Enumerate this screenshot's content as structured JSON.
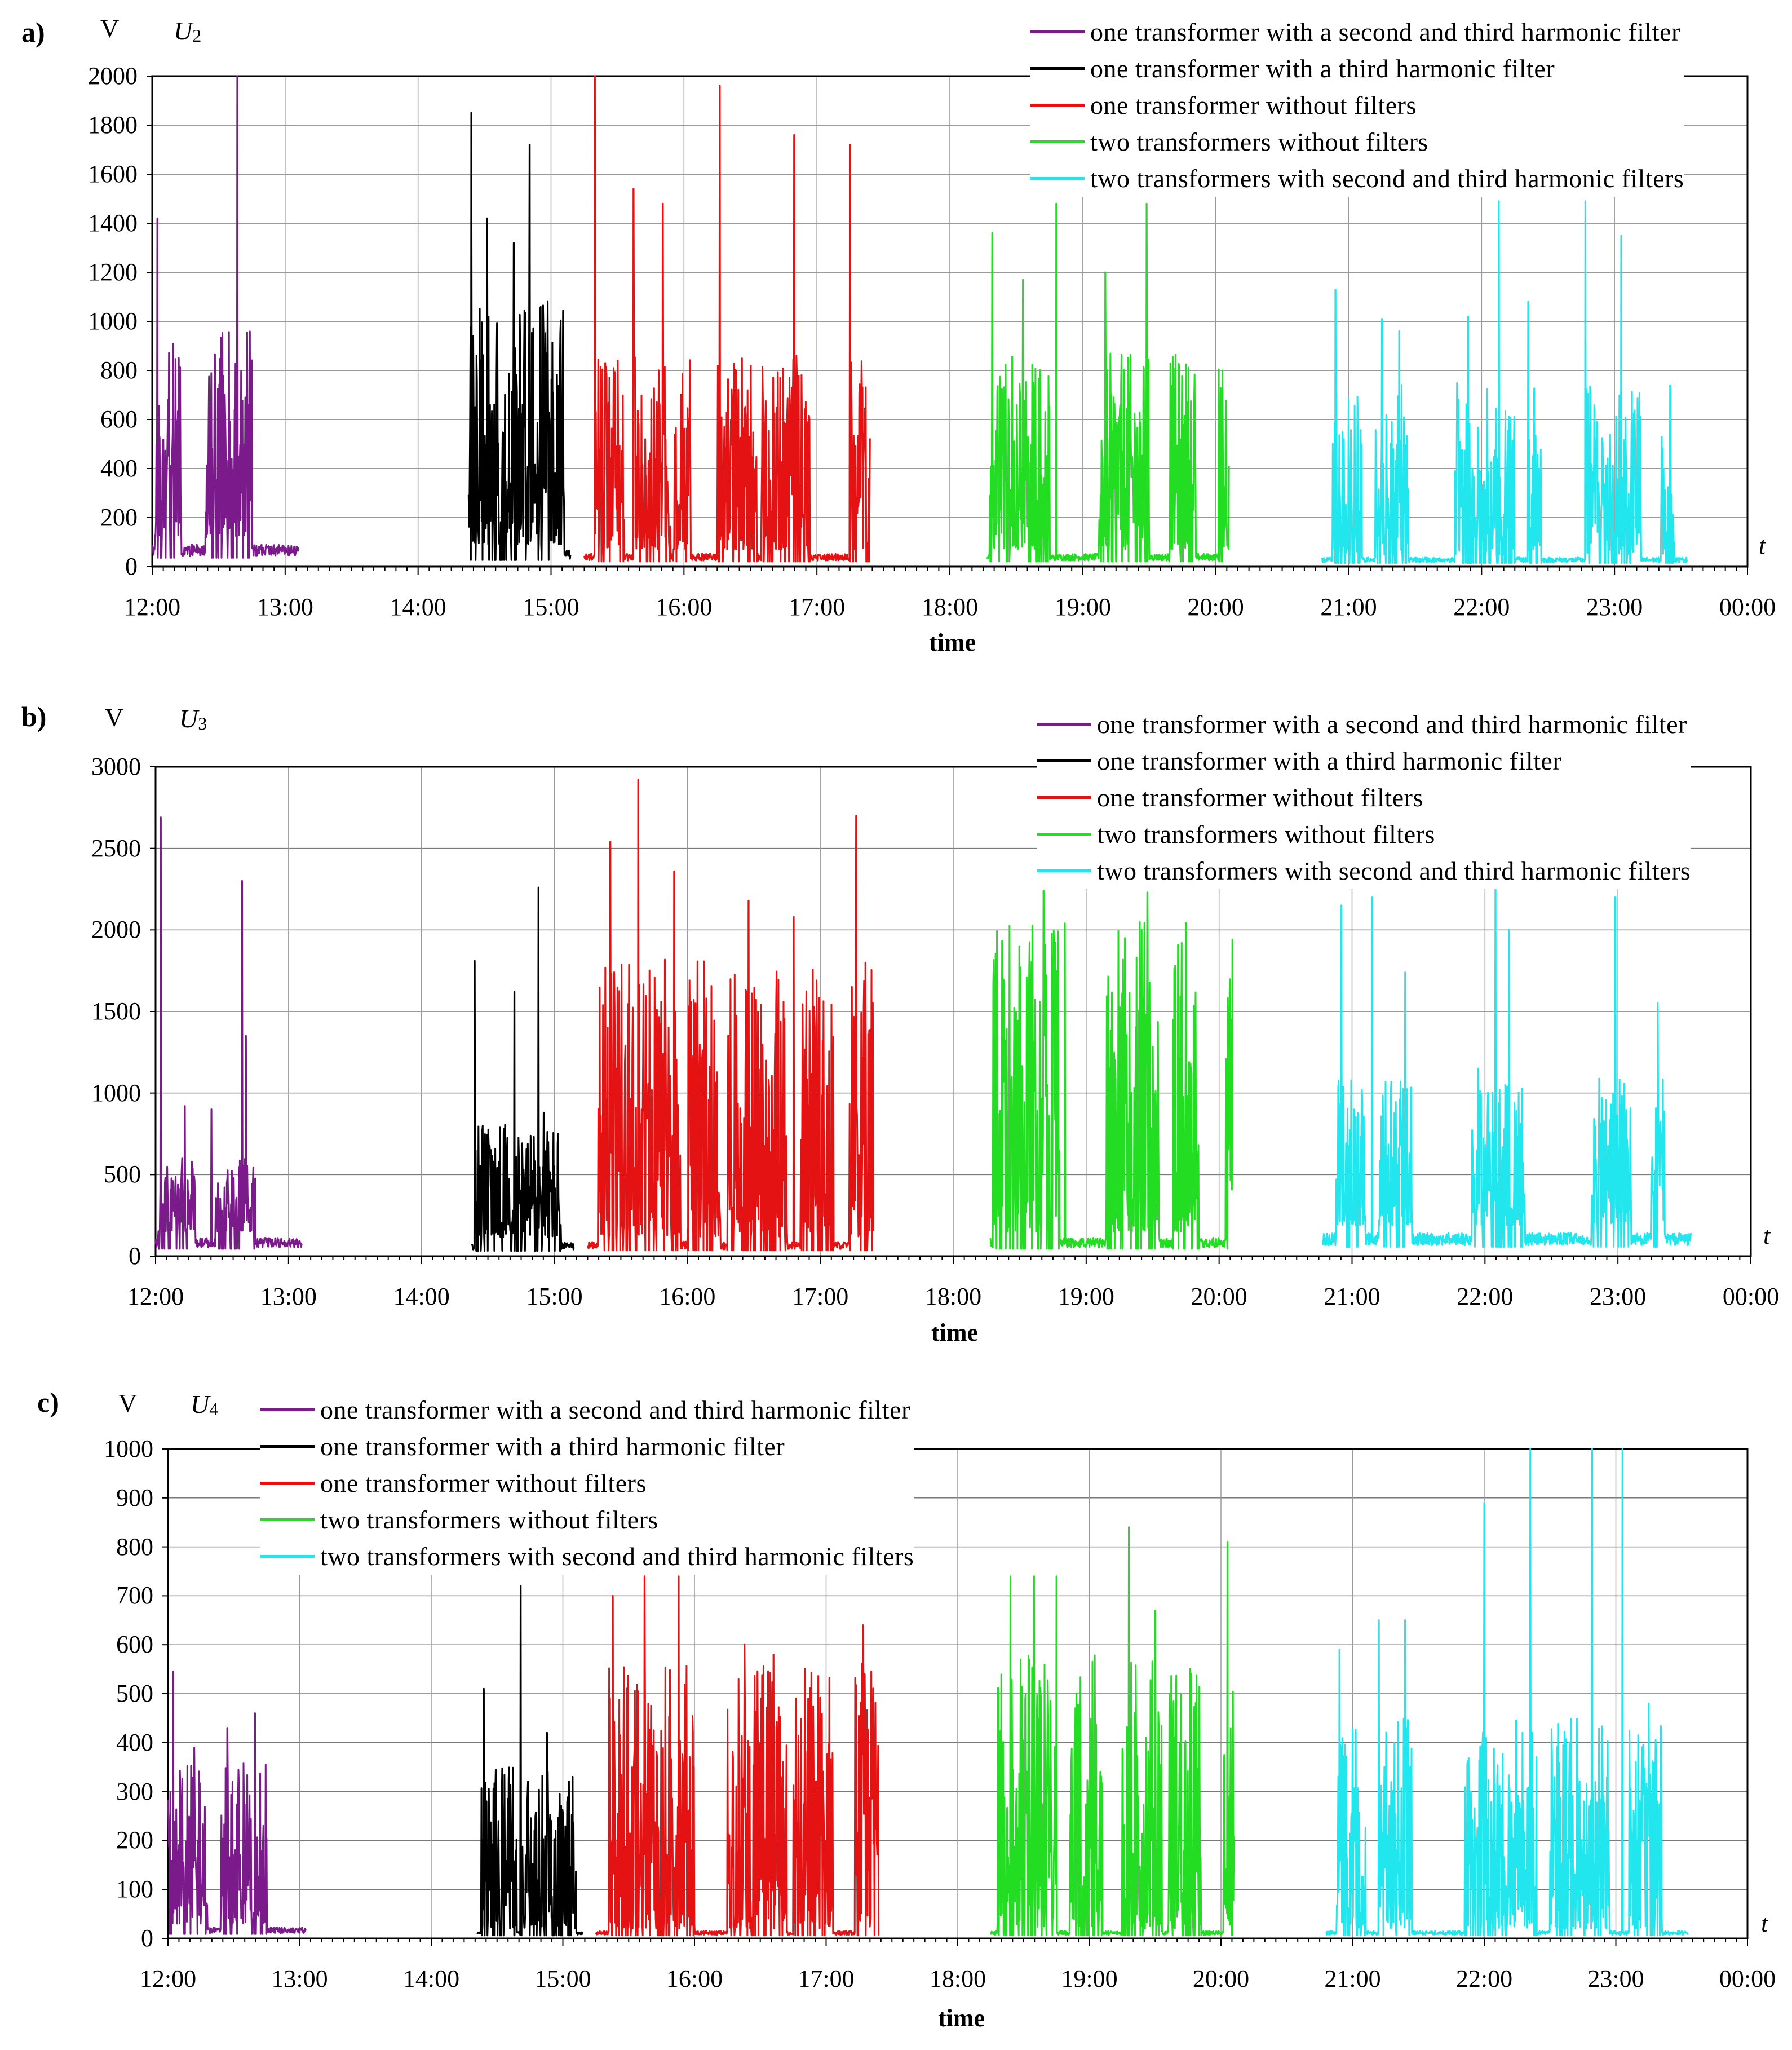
{
  "colors": {
    "purple": "#7b1a8a",
    "black": "#000000",
    "red": "#e41212",
    "green": "#22dd22",
    "cyan": "#22e6ee"
  },
  "legend_labels": [
    "one transformer with a second and third harmonic filter",
    "one transformer with a third harmonic filter",
    "one transformer without filters",
    "two transformers without filters",
    "two transformers with second and third harmonic filters"
  ],
  "xlabel": "time",
  "tlabel": "t",
  "unit": "V",
  "xticks": [
    "12:00",
    "13:00",
    "14:00",
    "15:00",
    "16:00",
    "17:00",
    "18:00",
    "19:00",
    "20:00",
    "21:00",
    "22:00",
    "23:00",
    "00:00"
  ],
  "chart_data": [
    {
      "panel": "a)",
      "type": "line",
      "title": "U2",
      "title_main": "U",
      "title_sub": "2",
      "ylabel": "V",
      "xlabel": "time",
      "xlim": [
        12,
        24
      ],
      "ylim": [
        0,
        2000
      ],
      "yticks": [
        0,
        200,
        400,
        600,
        800,
        1000,
        1200,
        1400,
        1600,
        1800,
        2000
      ],
      "legend_position": "top-right",
      "series": [
        {
          "name": "one transformer with a second and third harmonic filter",
          "color": "#7b1a8a",
          "seed": 11,
          "start": 12.0,
          "end": 13.1,
          "base": 120,
          "peakmax": 850,
          "bursts": [
            [
              12.02,
              12.22
            ],
            [
              12.4,
              12.75
            ]
          ],
          "spikes": [
            [
              12.04,
              1420
            ],
            [
              12.12,
              680
            ],
            [
              12.2,
              850
            ],
            [
              12.47,
              820
            ],
            [
              12.64,
              2000
            ],
            [
              12.7,
              690
            ]
          ]
        },
        {
          "name": "one transformer with a third harmonic filter",
          "color": "#000000",
          "seed": 23,
          "start": 14.38,
          "end": 15.15,
          "base": 90,
          "peakmax": 1000,
          "bursts": [
            [
              14.38,
              15.1
            ]
          ],
          "spikes": [
            [
              14.4,
              1850
            ],
            [
              14.52,
              1420
            ],
            [
              14.72,
              1320
            ],
            [
              14.84,
              1720
            ],
            [
              14.97,
              800
            ]
          ]
        },
        {
          "name": "one transformer without filters",
          "color": "#e41212",
          "seed": 37,
          "start": 15.25,
          "end": 17.4,
          "base": 70,
          "peakmax": 800,
          "bursts": [
            [
              15.33,
              15.55
            ],
            [
              15.62,
              15.9
            ],
            [
              15.92,
              16.05
            ],
            [
              16.25,
              16.55
            ],
            [
              16.58,
              16.95
            ],
            [
              17.25,
              17.4
            ]
          ],
          "spikes": [
            [
              15.33,
              2000
            ],
            [
              15.62,
              1540
            ],
            [
              15.84,
              1480
            ],
            [
              16.27,
              1960
            ],
            [
              16.83,
              1760
            ],
            [
              17.25,
              1720
            ]
          ]
        },
        {
          "name": "two transformers without filters",
          "color": "#22dd22",
          "seed": 41,
          "start": 18.28,
          "end": 20.1,
          "base": 70,
          "peakmax": 800,
          "bursts": [
            [
              18.3,
              18.75
            ],
            [
              19.12,
              19.5
            ],
            [
              19.65,
              19.85
            ],
            [
              20.02,
              20.1
            ]
          ],
          "spikes": [
            [
              18.32,
              1360
            ],
            [
              18.55,
              1170
            ],
            [
              18.8,
              1480
            ],
            [
              19.17,
              1200
            ],
            [
              19.48,
              1480
            ],
            [
              20.05,
              800
            ]
          ]
        },
        {
          "name": "two transformers with second and third harmonic filters",
          "color": "#22e6ee",
          "seed": 53,
          "start": 20.8,
          "end": 23.55,
          "base": 50,
          "peakmax": 700,
          "bursts": [
            [
              20.88,
              21.1
            ],
            [
              21.2,
              21.45
            ],
            [
              21.8,
              22.25
            ],
            [
              22.35,
              22.45
            ],
            [
              22.78,
              23.2
            ],
            [
              23.35,
              23.45
            ]
          ],
          "spikes": [
            [
              20.9,
              1130
            ],
            [
              21.25,
              1010
            ],
            [
              21.38,
              960
            ],
            [
              21.9,
              1020
            ],
            [
              22.13,
              1490
            ],
            [
              22.35,
              1080
            ],
            [
              22.78,
              1490
            ],
            [
              23.05,
              1350
            ]
          ]
        }
      ]
    },
    {
      "panel": "b)",
      "type": "line",
      "title": "U3",
      "title_main": "U",
      "title_sub": "3",
      "ylabel": "V",
      "xlabel": "time",
      "xlim": [
        12,
        24
      ],
      "ylim": [
        0,
        3000
      ],
      "yticks": [
        0,
        500,
        1000,
        1500,
        2000,
        2500,
        3000
      ],
      "legend_position": "top-right",
      "series": [
        {
          "name": "one transformer with a second and third harmonic filter",
          "color": "#7b1a8a",
          "seed": 12,
          "start": 12.0,
          "end": 13.1,
          "base": 150,
          "peakmax": 450,
          "bursts": [
            [
              12.02,
              12.3
            ],
            [
              12.45,
              12.75
            ]
          ],
          "spikes": [
            [
              12.04,
              2690
            ],
            [
              12.22,
              920
            ],
            [
              12.42,
              900
            ],
            [
              12.65,
              2300
            ],
            [
              12.68,
              1350
            ]
          ]
        },
        {
          "name": "one transformer with a third harmonic filter",
          "color": "#000000",
          "seed": 24,
          "start": 14.38,
          "end": 15.15,
          "base": 110,
          "peakmax": 700,
          "bursts": [
            [
              14.4,
              15.05
            ]
          ],
          "spikes": [
            [
              14.4,
              1810
            ],
            [
              14.7,
              1620
            ],
            [
              14.88,
              2260
            ],
            [
              14.92,
              880
            ]
          ]
        },
        {
          "name": "one transformer without filters",
          "color": "#e41212",
          "seed": 38,
          "start": 15.25,
          "end": 17.4,
          "base": 120,
          "peakmax": 1700,
          "bursts": [
            [
              15.33,
              15.95
            ],
            [
              16.0,
              16.25
            ],
            [
              16.3,
              16.75
            ],
            [
              16.85,
              17.1
            ],
            [
              17.22,
              17.4
            ]
          ],
          "spikes": [
            [
              15.42,
              2540
            ],
            [
              15.63,
              2920
            ],
            [
              15.9,
              2360
            ],
            [
              16.46,
              2180
            ],
            [
              16.8,
              2080
            ],
            [
              17.27,
              2700
            ]
          ]
        },
        {
          "name": "two transformers without filters",
          "color": "#22dd22",
          "seed": 42,
          "start": 18.28,
          "end": 20.1,
          "base": 150,
          "peakmax": 1900,
          "bursts": [
            [
              18.3,
              18.8
            ],
            [
              19.15,
              19.55
            ],
            [
              19.65,
              19.85
            ],
            [
              20.05,
              20.1
            ]
          ],
          "spikes": [
            [
              18.68,
              2240
            ],
            [
              18.84,
              2040
            ],
            [
              19.46,
              2230
            ],
            [
              20.08,
              1640
            ]
          ]
        },
        {
          "name": "two transformers with second and third harmonic filters",
          "color": "#22e6ee",
          "seed": 54,
          "start": 20.78,
          "end": 23.55,
          "base": 190,
          "peakmax": 900,
          "bursts": [
            [
              20.88,
              21.1
            ],
            [
              21.2,
              21.45
            ],
            [
              21.9,
              22.3
            ],
            [
              22.8,
              23.1
            ],
            [
              23.25,
              23.35
            ]
          ],
          "spikes": [
            [
              20.92,
              2150
            ],
            [
              21.15,
              2200
            ],
            [
              21.4,
              1740
            ],
            [
              21.95,
              1150
            ],
            [
              22.08,
              2260
            ],
            [
              22.18,
              2000
            ],
            [
              22.98,
              2200
            ],
            [
              23.3,
              1550
            ]
          ]
        }
      ]
    },
    {
      "panel": "c)",
      "type": "line",
      "title": "U4",
      "title_main": "U",
      "title_sub": "4",
      "ylabel": "V",
      "xlabel": "time",
      "xlim": [
        12,
        24
      ],
      "ylim": [
        0,
        1000
      ],
      "yticks": [
        0,
        100,
        200,
        300,
        400,
        500,
        600,
        700,
        800,
        900,
        1000
      ],
      "legend_position": "top-left",
      "series": [
        {
          "name": "one transformer with a second and third harmonic filter",
          "color": "#7b1a8a",
          "seed": 13,
          "start": 12.0,
          "end": 13.05,
          "base": 30,
          "peakmax": 330,
          "bursts": [
            [
              12.0,
              12.3
            ],
            [
              12.4,
              12.75
            ]
          ],
          "spikes": [
            [
              12.04,
              545
            ],
            [
              12.2,
              390
            ],
            [
              12.45,
              430
            ],
            [
              12.66,
              460
            ]
          ]
        },
        {
          "name": "one transformer with a third harmonic filter",
          "color": "#000000",
          "seed": 25,
          "start": 14.35,
          "end": 15.15,
          "base": 20,
          "peakmax": 330,
          "bursts": [
            [
              14.38,
              14.65
            ],
            [
              14.68,
              15.1
            ]
          ],
          "spikes": [
            [
              14.4,
              510
            ],
            [
              14.68,
              720
            ],
            [
              14.88,
              420
            ]
          ]
        },
        {
          "name": "one transformer without filters",
          "color": "#e41212",
          "seed": 39,
          "start": 15.25,
          "end": 17.4,
          "base": 20,
          "peakmax": 550,
          "bursts": [
            [
              15.35,
              16.0
            ],
            [
              16.25,
              16.7
            ],
            [
              16.75,
              17.05
            ],
            [
              17.22,
              17.4
            ]
          ],
          "spikes": [
            [
              15.38,
              700
            ],
            [
              15.62,
              740
            ],
            [
              15.88,
              740
            ],
            [
              16.38,
              600
            ],
            [
              16.6,
              580
            ],
            [
              17.28,
              640
            ]
          ]
        },
        {
          "name": "two transformers without filters",
          "color": "#22dd22",
          "seed": 43,
          "start": 18.25,
          "end": 20.1,
          "base": 20,
          "peakmax": 560,
          "bursts": [
            [
              18.3,
              18.75
            ],
            [
              18.85,
              19.1
            ],
            [
              19.25,
              19.55
            ],
            [
              19.6,
              19.85
            ],
            [
              20.02,
              20.1
            ]
          ],
          "spikes": [
            [
              18.4,
              740
            ],
            [
              18.58,
              740
            ],
            [
              18.75,
              740
            ],
            [
              19.3,
              840
            ],
            [
              19.5,
              670
            ],
            [
              20.05,
              810
            ]
          ]
        },
        {
          "name": "two transformers with second and third harmonic filters",
          "color": "#22e6ee",
          "seed": 55,
          "start": 20.8,
          "end": 23.55,
          "base": 20,
          "peakmax": 430,
          "bursts": [
            [
              20.88,
              21.1
            ],
            [
              21.2,
              21.45
            ],
            [
              21.85,
              22.4
            ],
            [
              22.5,
              22.95
            ],
            [
              23.1,
              23.35
            ]
          ],
          "spikes": [
            [
              20.9,
              590
            ],
            [
              21.2,
              650
            ],
            [
              21.4,
              650
            ],
            [
              22.0,
              890
            ],
            [
              22.35,
              1000
            ],
            [
              22.82,
              1000
            ],
            [
              23.05,
              1000
            ],
            [
              23.25,
              480
            ]
          ]
        }
      ]
    }
  ]
}
